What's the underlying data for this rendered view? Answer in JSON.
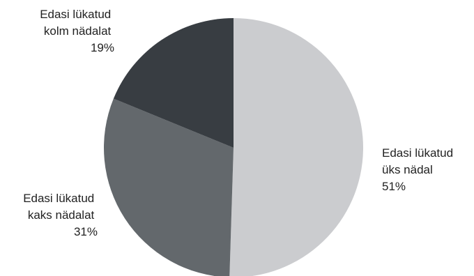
{
  "chart_data": {
    "type": "pie",
    "title": "",
    "legend": "none",
    "slices": [
      {
        "label_lines": [
          "Edasi lükatud",
          "üks nädal"
        ],
        "value": 51,
        "value_text": "51%",
        "color": "#cbcccf"
      },
      {
        "label_lines": [
          "Edasi lükatud",
          "kaks nädalat"
        ],
        "value": 31,
        "value_text": "31%",
        "color": "#63686c"
      },
      {
        "label_lines": [
          "Edasi lükatud",
          "kolm nädalat"
        ],
        "value": 19,
        "value_text": "19%",
        "color": "#383d42"
      }
    ]
  }
}
